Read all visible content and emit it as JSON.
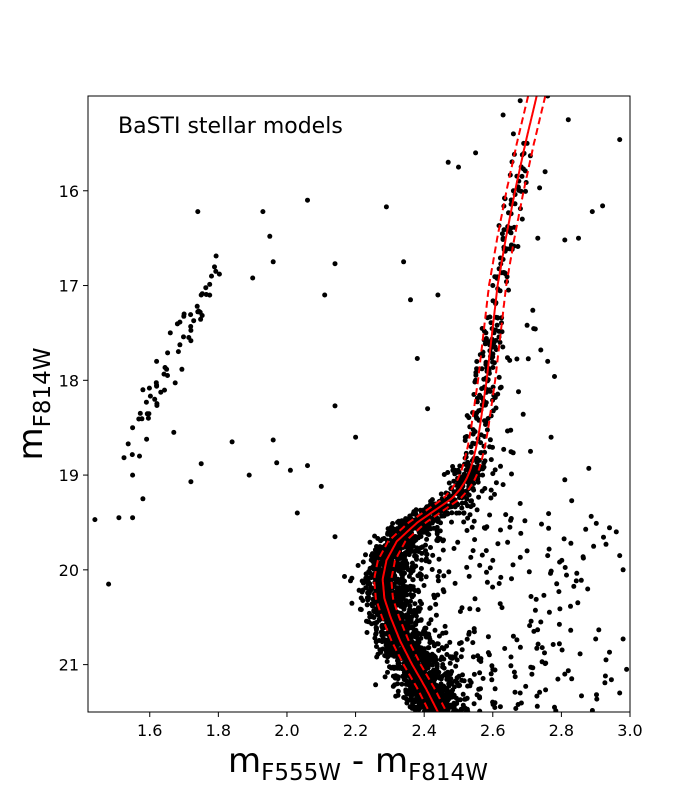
{
  "chart_data": {
    "type": "scatter",
    "annotation": "BaSTI stellar models",
    "xlabel": {
      "main": "m",
      "sub1": "F555W",
      "sep": " - ",
      "main2": "m",
      "sub2": "F814W"
    },
    "ylabel": {
      "main": "m",
      "sub": "F814W"
    },
    "xlim": [
      1.42,
      3.0
    ],
    "ylim": [
      21.5,
      15.0
    ],
    "y_inverted": true,
    "grid": false,
    "xticks": [
      1.6,
      1.8,
      2.0,
      2.2,
      2.4,
      2.6,
      2.8,
      3.0
    ],
    "xtick_labels": [
      "1.6",
      "1.8",
      "2.0",
      "2.2",
      "2.4",
      "2.6",
      "2.8",
      "3.0"
    ],
    "yticks": [
      16,
      17,
      18,
      19,
      20,
      21
    ],
    "ytick_labels": [
      "16",
      "17",
      "18",
      "19",
      "20",
      "21"
    ],
    "point_color": "#000000",
    "model_color": "#ff0000",
    "isochrone": {
      "name": "model",
      "style": "solid",
      "x": [
        2.728,
        2.695,
        2.665,
        2.638,
        2.614,
        2.598,
        2.582,
        2.57,
        2.562,
        2.552,
        2.542,
        2.534,
        2.522,
        2.505,
        2.48,
        2.44,
        2.38,
        2.32,
        2.29,
        2.279,
        2.284,
        2.302,
        2.33,
        2.365,
        2.405,
        2.44
      ],
      "y": [
        15.0,
        15.5,
        16.0,
        16.5,
        17.0,
        17.5,
        18.0,
        18.3,
        18.5,
        18.7,
        18.85,
        18.95,
        19.05,
        19.15,
        19.25,
        19.35,
        19.5,
        19.7,
        19.9,
        20.1,
        20.3,
        20.5,
        20.75,
        21.0,
        21.25,
        21.5
      ]
    },
    "isochrone_bounds": [
      {
        "name": "upper",
        "style": "dashed",
        "x_offset": -0.025
      },
      {
        "name": "lower",
        "style": "dashed",
        "x_offset": 0.025
      }
    ],
    "sequence_points": {
      "main_sequence": [
        [
          2.3,
          20.6
        ],
        [
          2.32,
          20.8
        ],
        [
          2.28,
          20.3
        ],
        [
          2.35,
          21.0
        ],
        [
          2.38,
          21.2
        ],
        [
          2.42,
          21.4
        ],
        [
          2.26,
          19.9
        ],
        [
          2.3,
          19.6
        ],
        [
          2.37,
          19.4
        ],
        [
          2.45,
          19.2
        ]
      ],
      "red_giant_branch": [
        [
          2.52,
          18.6
        ],
        [
          2.55,
          18.0
        ],
        [
          2.58,
          17.5
        ],
        [
          2.6,
          17.0
        ],
        [
          2.63,
          16.5
        ],
        [
          2.66,
          16.0
        ],
        [
          2.7,
          15.5
        ]
      ],
      "horizontal_branch": [
        [
          1.55,
          18.5
        ],
        [
          1.58,
          18.1
        ],
        [
          1.62,
          17.8
        ],
        [
          1.66,
          17.5
        ],
        [
          1.7,
          17.3
        ],
        [
          1.75,
          17.1
        ],
        [
          1.78,
          16.9
        ]
      ]
    },
    "individual_points": [
      [
        1.44,
        19.47
      ],
      [
        1.48,
        20.15
      ],
      [
        1.51,
        19.45
      ],
      [
        1.55,
        19.45
      ],
      [
        1.55,
        19.0
      ],
      [
        1.57,
        18.8
      ],
      [
        1.58,
        19.25
      ],
      [
        1.67,
        18.55
      ],
      [
        1.72,
        19.07
      ],
      [
        1.75,
        18.88
      ],
      [
        1.74,
        16.22
      ],
      [
        1.84,
        18.65
      ],
      [
        1.89,
        19.0
      ],
      [
        1.9,
        16.92
      ],
      [
        1.93,
        16.22
      ],
      [
        1.95,
        16.48
      ],
      [
        1.96,
        16.75
      ],
      [
        1.96,
        18.63
      ],
      [
        1.97,
        18.87
      ],
      [
        2.01,
        18.95
      ],
      [
        2.03,
        19.4
      ],
      [
        2.06,
        16.1
      ],
      [
        2.06,
        18.9
      ],
      [
        2.1,
        19.12
      ],
      [
        2.11,
        17.1
      ],
      [
        2.14,
        19.65
      ],
      [
        2.14,
        16.77
      ],
      [
        2.14,
        18.27
      ],
      [
        2.2,
        18.6
      ],
      [
        2.29,
        16.17
      ],
      [
        2.34,
        16.75
      ],
      [
        2.36,
        17.15
      ],
      [
        2.38,
        17.77
      ],
      [
        2.41,
        18.3
      ],
      [
        2.44,
        17.1
      ],
      [
        2.47,
        15.7
      ],
      [
        2.5,
        15.75
      ],
      [
        2.55,
        15.6
      ],
      [
        2.63,
        15.2
      ],
      [
        2.66,
        15.4
      ],
      [
        2.69,
        15.5
      ],
      [
        2.68,
        15.05
      ],
      [
        2.76,
        15.0
      ],
      [
        2.82,
        15.25
      ],
      [
        2.81,
        16.52
      ],
      [
        2.85,
        16.5
      ],
      [
        2.89,
        16.22
      ],
      [
        2.92,
        16.16
      ],
      [
        2.97,
        15.46
      ],
      [
        2.64,
        16.96
      ],
      [
        2.7,
        17.42
      ],
      [
        2.74,
        17.68
      ],
      [
        2.76,
        17.8
      ],
      [
        2.78,
        17.96
      ],
      [
        2.77,
        18.6
      ],
      [
        2.71,
        18.75
      ],
      [
        2.81,
        19.05
      ],
      [
        2.83,
        19.27
      ],
      [
        2.88,
        18.93
      ],
      [
        2.93,
        19.73
      ],
      [
        2.96,
        19.6
      ],
      [
        2.97,
        19.85
      ],
      [
        2.98,
        20.0
      ],
      [
        2.9,
        20.73
      ],
      [
        2.93,
        20.95
      ],
      [
        2.98,
        20.73
      ],
      [
        2.99,
        21.05
      ],
      [
        2.97,
        21.3
      ],
      [
        2.81,
        21.1
      ],
      [
        2.83,
        21.15
      ],
      [
        2.78,
        21.45
      ],
      [
        2.68,
        21.3
      ],
      [
        2.72,
        20.65
      ],
      [
        2.74,
        20.55
      ],
      [
        2.66,
        20.7
      ],
      [
        2.6,
        21.05
      ],
      [
        2.56,
        20.95
      ],
      [
        2.6,
        19.9
      ],
      [
        2.65,
        19.55
      ],
      [
        2.7,
        19.8
      ],
      [
        2.76,
        19.85
      ],
      [
        2.68,
        19.3
      ],
      [
        2.63,
        19.1
      ]
    ]
  }
}
